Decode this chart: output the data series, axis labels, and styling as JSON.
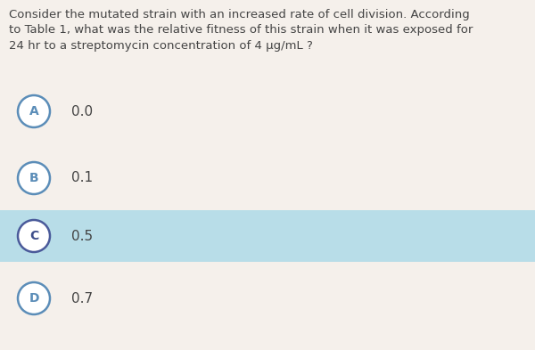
{
  "question_text": "Consider the mutated strain with an increased rate of cell division. According\nto Table 1, what was the relative fitness of this strain when it was exposed for\n24 hr to a streptomycin concentration of 4 μg/mL ?",
  "choices": [
    {
      "label": "A",
      "text": "0.0",
      "highlighted": false
    },
    {
      "label": "B",
      "text": "0.1",
      "highlighted": false
    },
    {
      "label": "C",
      "text": "0.5",
      "highlighted": true
    },
    {
      "label": "D",
      "text": "0.7",
      "highlighted": false
    }
  ],
  "bg_color": "#f5f0eb",
  "highlight_color": "#b8dde8",
  "circle_bg": "#ffffff",
  "circle_edge_normal": "#5b8db8",
  "circle_edge_highlighted": "#4a5a9a",
  "label_color_normal": "#5b8db8",
  "label_color_highlighted": "#3d4d8a",
  "text_color": "#444444",
  "question_font_size": 9.5,
  "choice_font_size": 11,
  "label_font_size": 10
}
